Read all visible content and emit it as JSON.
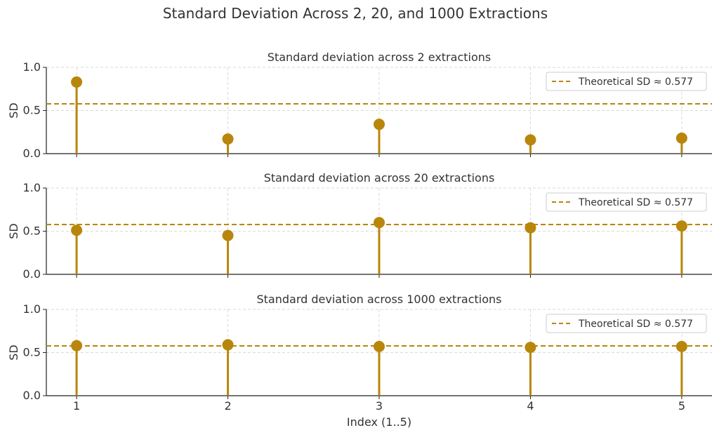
{
  "figure": {
    "title": "Standard Deviation Across 2, 20, and 1000 Extractions",
    "xlabel": "Index (1..5)",
    "colors": {
      "marker": "#b8860b",
      "theory": "#b8860b",
      "axis": "#222222",
      "grid": "#d9d9d9",
      "text": "#333333"
    }
  },
  "chart_data": [
    {
      "type": "scatter",
      "style": "stem",
      "title": "Standard deviation across 2 extractions",
      "xlabel": "",
      "ylabel": "SD",
      "x": [
        1,
        2,
        3,
        4,
        5
      ],
      "values": [
        0.83,
        0.17,
        0.34,
        0.16,
        0.18
      ],
      "xlim": [
        0.8,
        5.2
      ],
      "ylim": [
        0,
        1.0
      ],
      "xticks": [
        "1",
        "2",
        "3",
        "4",
        "5"
      ],
      "yticks": [
        "0.0",
        "0.5",
        "1.0"
      ],
      "reference_line": {
        "y": 0.577,
        "label": "Theoretical SD ≈ 0.577"
      },
      "grid": true,
      "legend": "top-right"
    },
    {
      "type": "scatter",
      "style": "stem",
      "title": "Standard deviation across 20 extractions",
      "xlabel": "",
      "ylabel": "SD",
      "x": [
        1,
        2,
        3,
        4,
        5
      ],
      "values": [
        0.51,
        0.45,
        0.6,
        0.54,
        0.56
      ],
      "xlim": [
        0.8,
        5.2
      ],
      "ylim": [
        0,
        1.0
      ],
      "xticks": [
        "1",
        "2",
        "3",
        "4",
        "5"
      ],
      "yticks": [
        "0.0",
        "0.5",
        "1.0"
      ],
      "reference_line": {
        "y": 0.577,
        "label": "Theoretical SD ≈ 0.577"
      },
      "grid": true,
      "legend": "top-right"
    },
    {
      "type": "scatter",
      "style": "stem",
      "title": "Standard deviation across 1000 extractions",
      "xlabel": "Index (1..5)",
      "ylabel": "SD",
      "x": [
        1,
        2,
        3,
        4,
        5
      ],
      "values": [
        0.58,
        0.59,
        0.57,
        0.56,
        0.57
      ],
      "xlim": [
        0.8,
        5.2
      ],
      "ylim": [
        0,
        1.0
      ],
      "xticks": [
        "1",
        "2",
        "3",
        "4",
        "5"
      ],
      "yticks": [
        "0.0",
        "0.5",
        "1.0"
      ],
      "reference_line": {
        "y": 0.577,
        "label": "Theoretical SD ≈ 0.577"
      },
      "grid": true,
      "legend": "top-right"
    }
  ]
}
